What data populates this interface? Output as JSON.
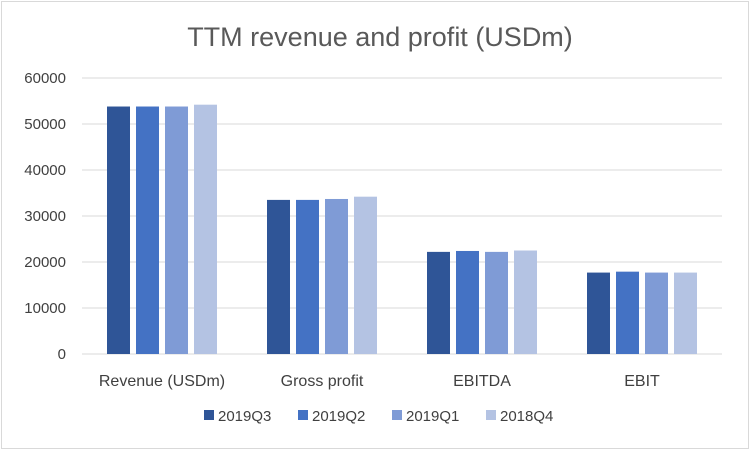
{
  "chart_data": {
    "type": "bar",
    "title": "TTM revenue and profit (USDm)",
    "categories": [
      "Revenue (USDm)",
      "Gross profit",
      "EBITDA",
      "EBIT"
    ],
    "series": [
      {
        "name": "2019Q3",
        "color": "#2f5597",
        "values": [
          53800,
          33500,
          22200,
          17700
        ]
      },
      {
        "name": "2019Q2",
        "color": "#4472c4",
        "values": [
          53800,
          33500,
          22400,
          17900
        ]
      },
      {
        "name": "2019Q1",
        "color": "#7f9bd6",
        "values": [
          53800,
          33700,
          22200,
          17700
        ]
      },
      {
        "name": "2018Q4",
        "color": "#b4c3e3",
        "values": [
          54200,
          34200,
          22500,
          17700
        ]
      }
    ],
    "yticks": [
      0,
      10000,
      20000,
      30000,
      40000,
      50000,
      60000
    ],
    "ylim": [
      0,
      60000
    ],
    "grid": true,
    "legend_position": "bottom"
  }
}
